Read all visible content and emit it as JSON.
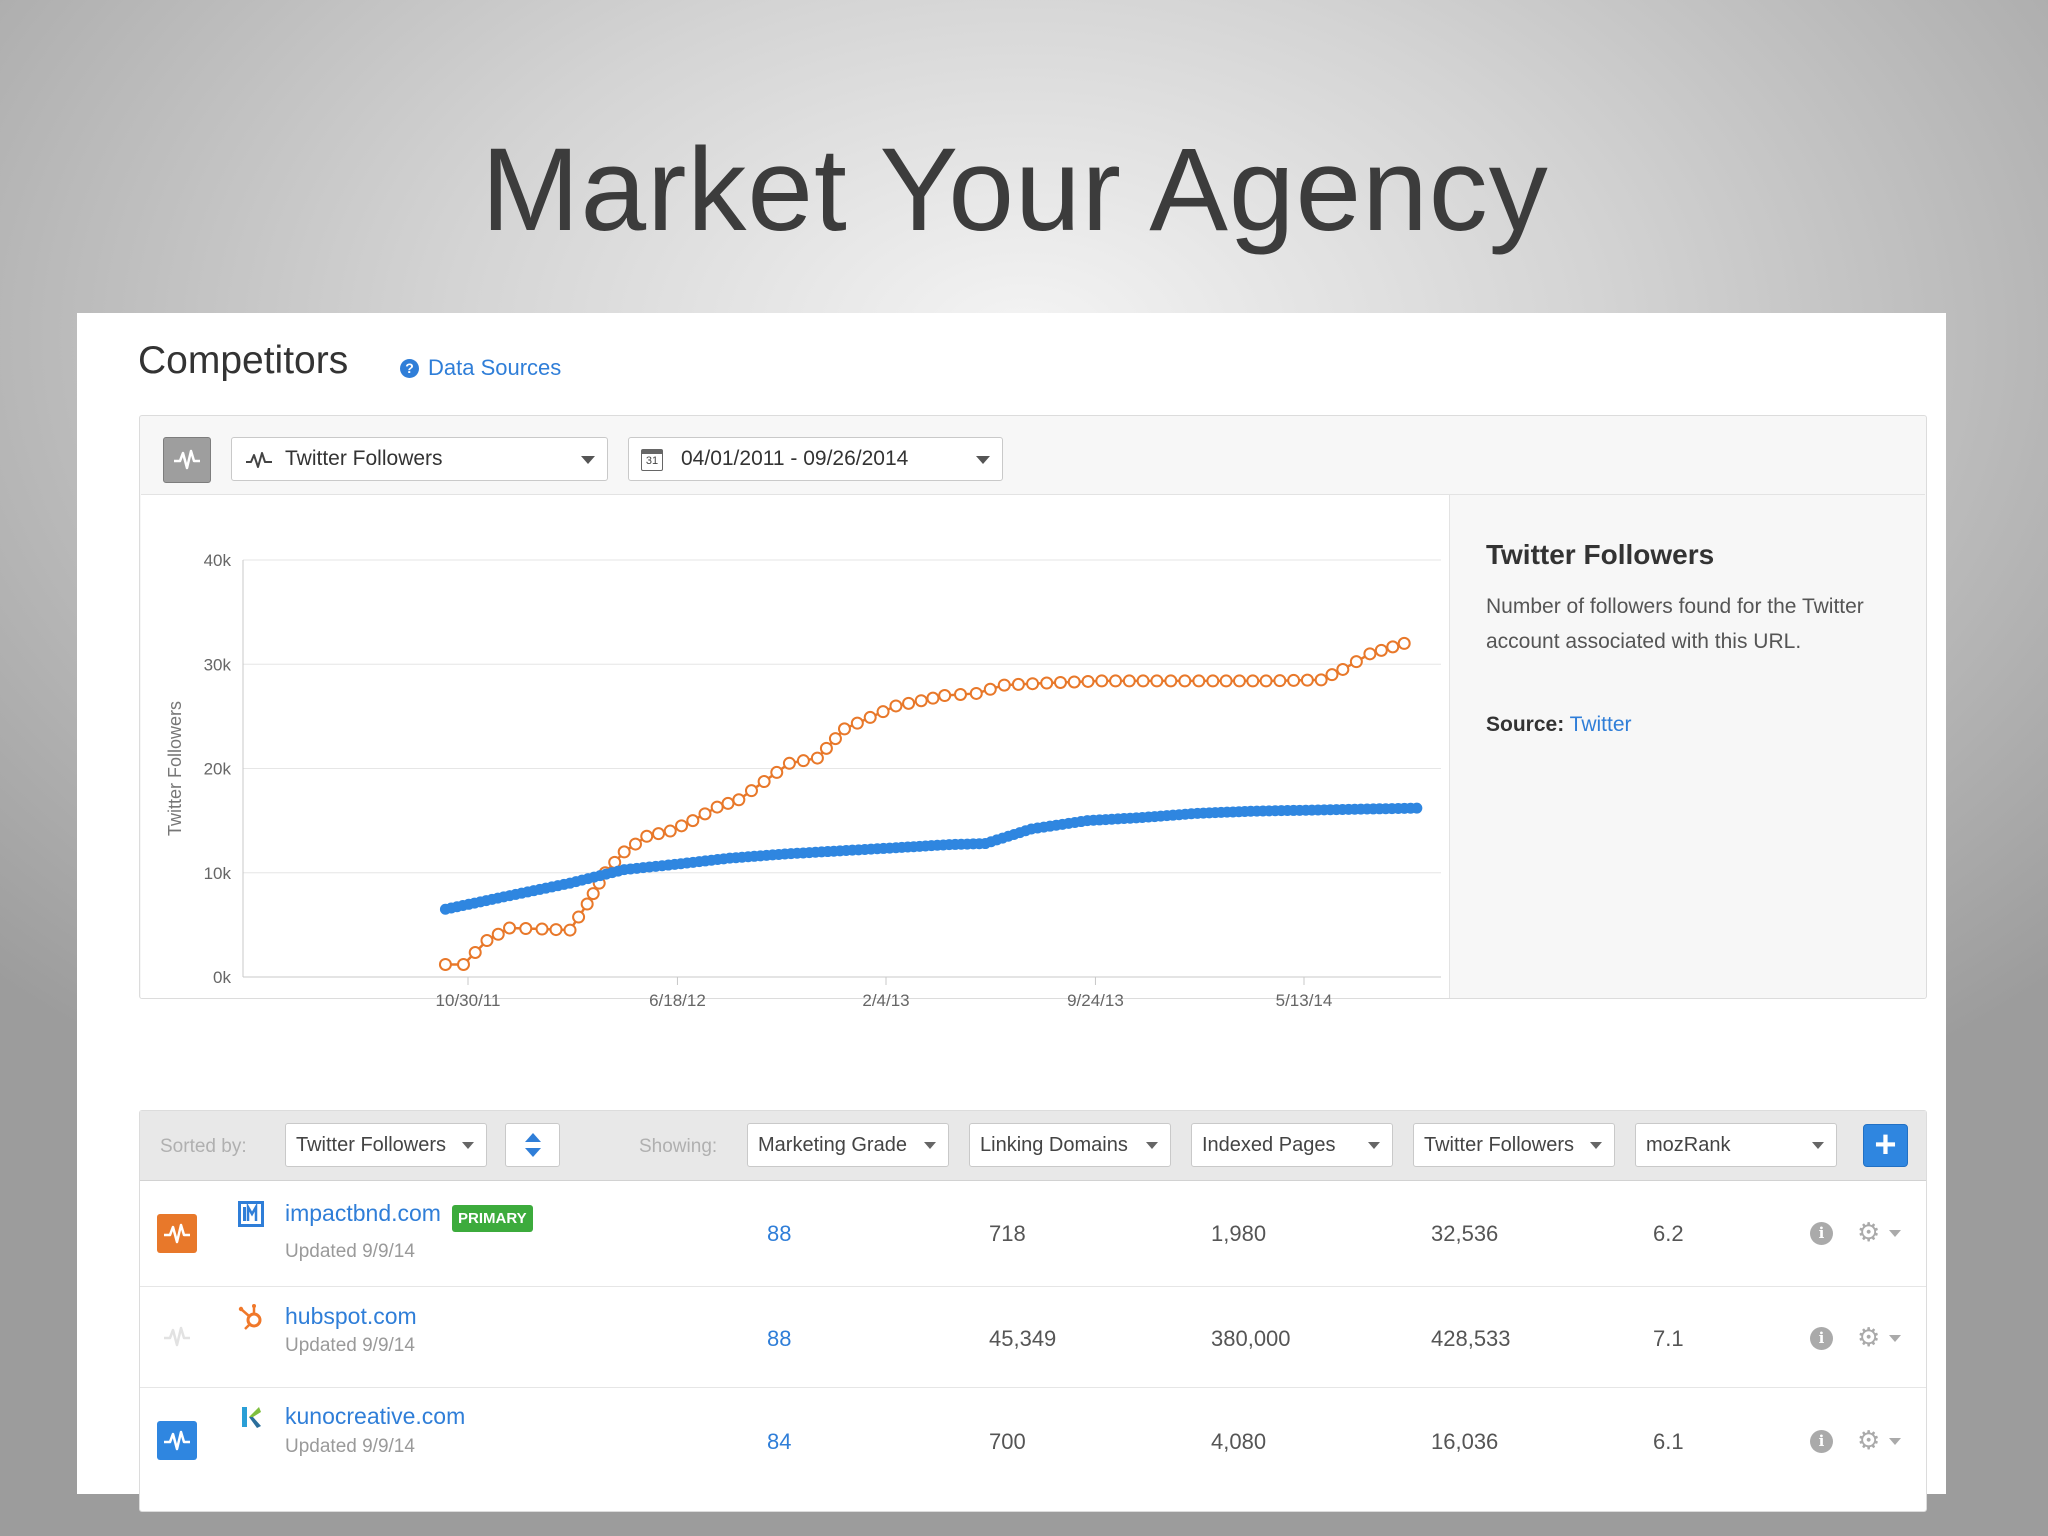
{
  "slide": {
    "title": "Market Your Agency"
  },
  "panel": {
    "title": "Competitors",
    "data_sources_label": "Data Sources",
    "data_sources_icon": "question-circle-icon"
  },
  "chart_toolbar": {
    "toggle_icon": "pulse-chart-icon",
    "metric_select": "Twitter Followers",
    "date_range_select": "04/01/2011 - 09/26/2014",
    "calendar_icon_text": "31"
  },
  "side_info": {
    "title": "Twitter Followers",
    "description": "Number of followers found for the Twitter account associated with this URL.",
    "source_label": "Source:",
    "source_value": "Twitter"
  },
  "table": {
    "sorted_by_label": "Sorted by:",
    "sort_select": "Twitter Followers",
    "showing_label": "Showing:",
    "columns": [
      "Marketing Grade",
      "Linking Domains",
      "Indexed Pages",
      "Twitter Followers",
      "mozRank"
    ],
    "add_button": "+",
    "rows": [
      {
        "site": "impactbnd.com",
        "badge": "PRIMARY",
        "updated": "Updated 9/9/14",
        "grade": "88",
        "linking_domains": "718",
        "indexed_pages": "1,980",
        "twitter_followers": "32,536",
        "mozrank": "6.2",
        "toggle_color": "#e8782a",
        "logo_icon": "impact-logo-icon"
      },
      {
        "site": "hubspot.com",
        "badge": "",
        "updated": "Updated 9/9/14",
        "grade": "88",
        "linking_domains": "45,349",
        "indexed_pages": "380,000",
        "twitter_followers": "428,533",
        "mozrank": "7.1",
        "toggle_color": "#ffffff",
        "logo_icon": "hubspot-sprocket-icon"
      },
      {
        "site": "kunocreative.com",
        "badge": "",
        "updated": "Updated 9/9/14",
        "grade": "84",
        "linking_domains": "700",
        "indexed_pages": "4,080",
        "twitter_followers": "16,036",
        "mozrank": "6.1",
        "toggle_color": "#2f86e0",
        "logo_icon": "kuno-logo-icon"
      }
    ]
  },
  "colors": {
    "accent": "#2f7ed8",
    "orange_series": "#e8782a",
    "blue_series": "#2f86e0",
    "primary_badge": "#3cab3c"
  },
  "chart_data": {
    "type": "line",
    "ylabel": "Twitter Followers",
    "xlabel": "",
    "ylim": [
      0,
      40000
    ],
    "y_ticks": [
      "0k",
      "10k",
      "20k",
      "30k",
      "40k"
    ],
    "y_tick_values": [
      0,
      10000,
      20000,
      30000,
      40000
    ],
    "x_ticks": [
      "10/30/11",
      "6/18/12",
      "2/4/13",
      "9/24/13",
      "5/13/14"
    ],
    "x_tick_dates": [
      "2011-10-30",
      "2012-06-18",
      "2013-02-04",
      "2013-09-24",
      "2014-05-13"
    ],
    "grid": true,
    "series": [
      {
        "color": "#e8782a",
        "marker": "open-circle",
        "points": [
          [
            "2011-10-05",
            1200
          ],
          [
            "2011-10-25",
            1200
          ],
          [
            "2011-11-20",
            3500
          ],
          [
            "2011-12-15",
            4700
          ],
          [
            "2012-01-20",
            4600
          ],
          [
            "2012-02-20",
            4500
          ],
          [
            "2012-03-10",
            7000
          ],
          [
            "2012-03-30",
            10000
          ],
          [
            "2012-04-20",
            12000
          ],
          [
            "2012-05-15",
            13500
          ],
          [
            "2012-06-10",
            14000
          ],
          [
            "2012-07-05",
            15000
          ],
          [
            "2012-08-01",
            16300
          ],
          [
            "2012-08-25",
            17000
          ],
          [
            "2012-10-20",
            20500
          ],
          [
            "2012-11-20",
            21000
          ],
          [
            "2012-12-20",
            23800
          ],
          [
            "2013-02-15",
            26000
          ],
          [
            "2013-03-15",
            26500
          ],
          [
            "2013-04-10",
            27000
          ],
          [
            "2013-05-15",
            27200
          ],
          [
            "2013-06-15",
            28000
          ],
          [
            "2013-08-01",
            28200
          ],
          [
            "2013-10-01",
            28400
          ],
          [
            "2013-12-01",
            28400
          ],
          [
            "2014-02-01",
            28400
          ],
          [
            "2014-04-01",
            28400
          ],
          [
            "2014-06-01",
            28500
          ],
          [
            "2014-06-25",
            29500
          ],
          [
            "2014-07-25",
            31000
          ],
          [
            "2014-09-01",
            32000
          ]
        ]
      },
      {
        "color": "#2f86e0",
        "marker": "filled-circle",
        "points": [
          [
            "2011-10-05",
            6500
          ],
          [
            "2011-12-15",
            7800
          ],
          [
            "2012-02-20",
            9000
          ],
          [
            "2012-04-20",
            10300
          ],
          [
            "2012-06-15",
            10800
          ],
          [
            "2012-08-15",
            11400
          ],
          [
            "2012-10-15",
            11800
          ],
          [
            "2012-12-15",
            12100
          ],
          [
            "2013-02-15",
            12400
          ],
          [
            "2013-04-15",
            12700
          ],
          [
            "2013-05-25",
            12800
          ],
          [
            "2013-07-15",
            14200
          ],
          [
            "2013-09-15",
            15000
          ],
          [
            "2013-11-15",
            15300
          ],
          [
            "2014-01-15",
            15700
          ],
          [
            "2014-03-15",
            15900
          ],
          [
            "2014-05-15",
            16000
          ],
          [
            "2014-07-15",
            16100
          ],
          [
            "2014-09-15",
            16200
          ]
        ]
      }
    ]
  }
}
